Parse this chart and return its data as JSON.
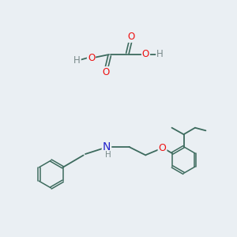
{
  "background_color": "#eaeff3",
  "bond_color": "#3d6b5e",
  "atom_colors": {
    "O": "#ee1111",
    "N": "#2222cc",
    "H": "#7a8a8a",
    "C": "#3d6b5e"
  },
  "font_size": 8.5,
  "figsize": [
    3.0,
    3.0
  ],
  "dpi": 100
}
